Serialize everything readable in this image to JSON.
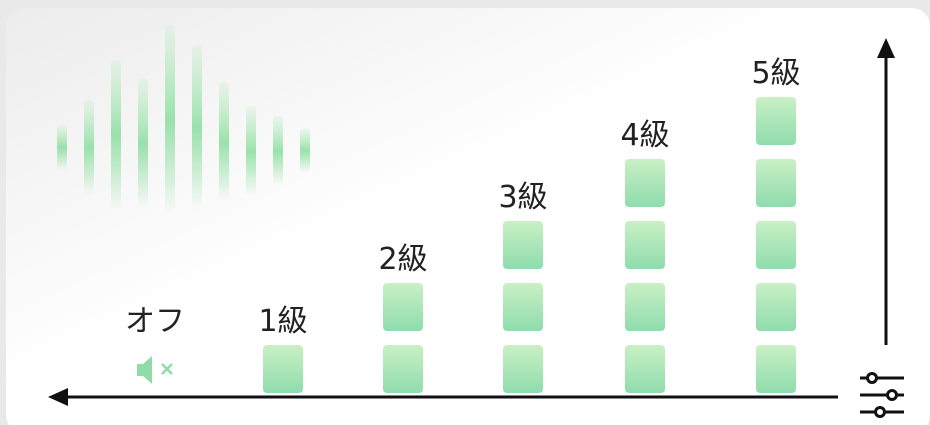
{
  "levels": [
    {
      "label": "オフ",
      "blocks": 0
    },
    {
      "label": "1級",
      "blocks": 1
    },
    {
      "label": "2級",
      "blocks": 2
    },
    {
      "label": "3級",
      "blocks": 3
    },
    {
      "label": "4級",
      "blocks": 4
    },
    {
      "label": "5級",
      "blocks": 5
    }
  ]
}
